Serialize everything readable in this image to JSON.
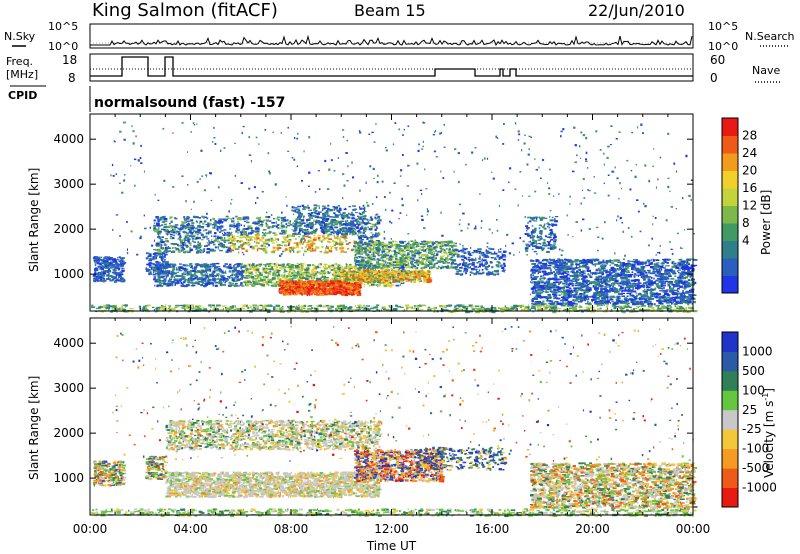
{
  "header": {
    "station": "King Salmon (fitACF)",
    "beam": "Beam 15",
    "date": "22/Jun/2010"
  },
  "noise_panel": {
    "left_label": "N.Sky",
    "right_label": "N.Search",
    "y_tick_top": "10^5",
    "y_tick_bottom": "10^0"
  },
  "freq_panel": {
    "left_label_line1": "Freq.",
    "left_label_line2": "[MHz]",
    "right_label": "Nave",
    "left_ticks": [
      "18",
      "8"
    ],
    "right_ticks": [
      "60",
      "0"
    ]
  },
  "cpid_panel": {
    "label": "CPID",
    "text": "normalsound (fast) -157"
  },
  "time_axis": {
    "title": "Time UT",
    "ticks": [
      "00:00",
      "04:00",
      "08:00",
      "12:00",
      "16:00",
      "20:00",
      "00:00"
    ]
  },
  "range_axis": {
    "title": "Slant Range [km]",
    "ticks": [
      "1000",
      "2000",
      "3000",
      "4000"
    ]
  },
  "chart_data": [
    {
      "type": "heatmap",
      "title": "Power",
      "xlabel": "Time UT",
      "ylabel": "Slant Range [km]",
      "x_range_hours": [
        0,
        24
      ],
      "y_range_km": [
        180,
        4560
      ],
      "colorbar": {
        "label": "Power [dB]",
        "ticks": [
          "4",
          "8",
          "12",
          "16",
          "20",
          "24",
          "28"
        ],
        "range": [
          0,
          30
        ],
        "colors": [
          "#1f35e6",
          "#2a5fbf",
          "#2f7f8a",
          "#3f9a63",
          "#7db84b",
          "#c4d23c",
          "#f2d02a",
          "#f39b1c",
          "#f05a18",
          "#e81a14"
        ]
      },
      "regions": [
        {
          "t0": 1.0,
          "t1": 17.8,
          "r0": 620,
          "r1": 1300,
          "level": "8-16 dB"
        },
        {
          "t0": 5.0,
          "t1": 11.5,
          "r0": 1300,
          "r1": 2400,
          "level": "8-24 dB"
        },
        {
          "t0": 8.0,
          "t1": 10.5,
          "r0": 550,
          "r1": 900,
          "level": "28+ dB"
        },
        {
          "t0": 17.5,
          "t1": 24.0,
          "r0": 350,
          "r1": 1350,
          "level": "4-12 dB"
        }
      ]
    },
    {
      "type": "heatmap",
      "title": "Velocity",
      "xlabel": "Time UT",
      "ylabel": "Slant Range [km]",
      "x_range_hours": [
        0,
        24
      ],
      "y_range_km": [
        180,
        4560
      ],
      "colorbar": {
        "label": "Velocity [m s^-1]",
        "ticks": [
          "1000",
          "500",
          "100",
          "25",
          "-25",
          "-100",
          "-500",
          "-1000"
        ],
        "colors": [
          "#2034c9",
          "#2b5aa8",
          "#2f8056",
          "#64c641",
          "#c8c8c8",
          "#f2c83a",
          "#f59a22",
          "#f05a18",
          "#e81a14"
        ]
      },
      "regions": [
        {
          "t0": 3.0,
          "t1": 11.5,
          "r0": 600,
          "r1": 2300,
          "level": "ground scatter (-25 to 25)"
        },
        {
          "t0": 10.5,
          "t1": 14.0,
          "r0": 950,
          "r1": 1650,
          "level": "-100 to -500"
        },
        {
          "t0": 17.5,
          "t1": 24.0,
          "r0": 350,
          "r1": 1350,
          "level": "mixed"
        }
      ]
    }
  ]
}
